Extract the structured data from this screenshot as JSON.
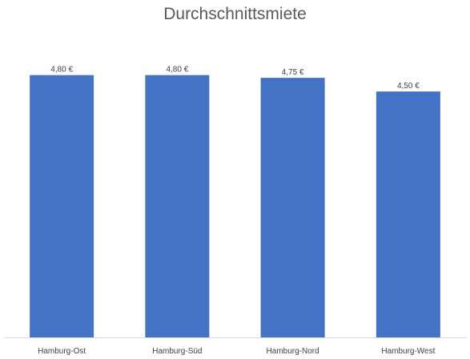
{
  "chart_data": {
    "type": "bar",
    "title": "Durchschnittsmiete",
    "categories": [
      "Hamburg-Ost",
      "Hamburg-Süd",
      "Hamburg-Nord",
      "Hamburg-West"
    ],
    "values": [
      4.8,
      4.8,
      4.75,
      4.5
    ],
    "data_labels": [
      "4,80 €",
      "4,80 €",
      "4,75 €",
      "4,50 €"
    ],
    "xlabel": "",
    "ylabel": "",
    "ylim": [
      0,
      5.5
    ],
    "grid": false,
    "legend": "none",
    "bar_color": "#4472C4",
    "axis_color": "#D9D9D9"
  }
}
